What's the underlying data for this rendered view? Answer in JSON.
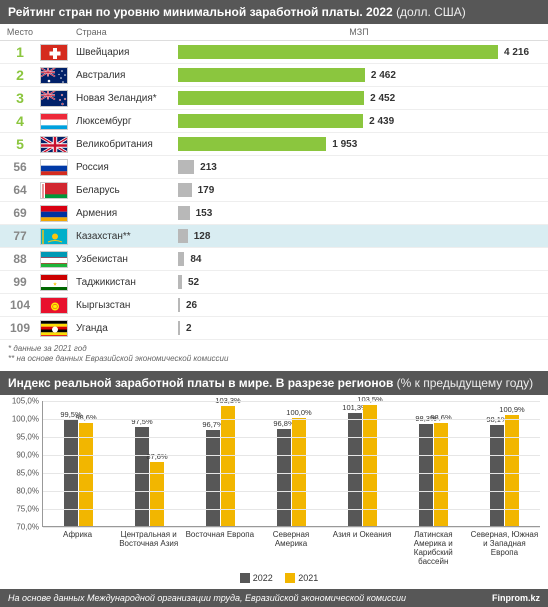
{
  "ranking": {
    "title_main": "Рейтинг стран по уровню минимальной заработной платы. 2022",
    "title_sub": "(долл. США)",
    "bg_color": "#575757",
    "text_color": "#ffffff",
    "headers": {
      "rank": "Место",
      "country": "Страна",
      "value": "МЗП"
    },
    "max_value": 4216,
    "bar_colors": {
      "green": "#8bc63e",
      "gray": "#b8b8b8"
    },
    "rank_colors": {
      "top": "#8bc63e",
      "rest": "#868686"
    },
    "rows": [
      {
        "rank": "1",
        "country": "Швейцария",
        "value": "4 216",
        "num": 4216,
        "top": true,
        "flag": "CH"
      },
      {
        "rank": "2",
        "country": "Австралия",
        "value": "2 462",
        "num": 2462,
        "top": true,
        "flag": "AU"
      },
      {
        "rank": "3",
        "country": "Новая Зеландия*",
        "value": "2 452",
        "num": 2452,
        "top": true,
        "flag": "NZ"
      },
      {
        "rank": "4",
        "country": "Люксембург",
        "value": "2 439",
        "num": 2439,
        "top": true,
        "flag": "LU"
      },
      {
        "rank": "5",
        "country": "Великобритания",
        "value": "1 953",
        "num": 1953,
        "top": true,
        "flag": "GB"
      },
      {
        "rank": "56",
        "country": "Россия",
        "value": "213",
        "num": 213,
        "top": false,
        "flag": "RU"
      },
      {
        "rank": "64",
        "country": "Беларусь",
        "value": "179",
        "num": 179,
        "top": false,
        "flag": "BY"
      },
      {
        "rank": "69",
        "country": "Армения",
        "value": "153",
        "num": 153,
        "top": false,
        "flag": "AM"
      },
      {
        "rank": "77",
        "country": "Казахстан**",
        "value": "128",
        "num": 128,
        "top": false,
        "flag": "KZ",
        "highlight": true
      },
      {
        "rank": "88",
        "country": "Узбекистан",
        "value": "84",
        "num": 84,
        "top": false,
        "flag": "UZ"
      },
      {
        "rank": "99",
        "country": "Таджикистан",
        "value": "52",
        "num": 52,
        "top": false,
        "flag": "TJ"
      },
      {
        "rank": "104",
        "country": "Кыргызстан",
        "value": "26",
        "num": 26,
        "top": false,
        "flag": "KG"
      },
      {
        "rank": "109",
        "country": "Уганда",
        "value": "2",
        "num": 2,
        "top": false,
        "flag": "UG"
      }
    ],
    "footnote1": "* данные за 2021 год",
    "footnote2": "** на основе данных Евразийской экономической комиссии"
  },
  "chart": {
    "title_main": "Индекс реальной заработной платы в мире. В разрезе регионов",
    "title_sub": "(% к предыдущему году)",
    "y_min": 70,
    "y_max": 105,
    "y_ticks": [
      "105,0%",
      "100,0%",
      "95,0%",
      "90,0%",
      "85,0%",
      "80,0%",
      "75,0%",
      "70,0%"
    ],
    "y_vals": [
      105,
      100,
      95,
      90,
      85,
      80,
      75,
      70
    ],
    "color_2022": "#575757",
    "color_2021": "#f2b600",
    "series_labels": {
      "a": "2022",
      "b": "2021"
    },
    "categories": [
      {
        "label": "Африка",
        "a": 99.5,
        "b": 98.6,
        "al": "99,5%",
        "bl": "98,6%"
      },
      {
        "label": "Центральная и Восточная Азия",
        "a": 97.5,
        "b": 87.6,
        "al": "97,5%",
        "bl": "87,6%"
      },
      {
        "label": "Восточная Европа",
        "a": 96.7,
        "b": 103.3,
        "al": "96,7%",
        "bl": "103,3%"
      },
      {
        "label": "Северная Америка",
        "a": 96.8,
        "b": 100.0,
        "al": "96,8%",
        "bl": "100,0%"
      },
      {
        "label": "Азия и Океания",
        "a": 101.3,
        "b": 103.5,
        "al": "101,3%",
        "bl": "103,5%"
      },
      {
        "label": "Латинская Америка и Карибский бассейн",
        "a": 98.3,
        "b": 98.6,
        "al": "98,3%",
        "bl": "98,6%"
      },
      {
        "label": "Северная, Южная и Западная Европа",
        "a": 98.1,
        "b": 100.9,
        "al": "98,1%",
        "bl": "100,9%"
      }
    ]
  },
  "footer": {
    "source": "На основе данных Международной организации труда, Евразийской экономической комиссии",
    "brand": "Finprom.kz"
  },
  "flags": {
    "CH": "<rect width='28' height='17' fill='#d52b1e'/><rect x='12' y='3' width='4' height='11' fill='#fff'/><rect x='8.5' y='6.5' width='11' height='4' fill='#fff'/>",
    "AU": "<rect width='28' height='17' fill='#012169'/><rect width='14' height='8.5' fill='#012169'/><path d='M0,0 L14,8.5 M14,0 L0,8.5' stroke='#fff' stroke-width='1.6'/><path d='M0,0 L14,8.5 M14,0 L0,8.5' stroke='#c8102e' stroke-width='0.8'/><path d='M7,0 V8.5 M0,4.25 H14' stroke='#fff' stroke-width='2'/><path d='M7,0 V8.5 M0,4.25 H14' stroke='#c8102e' stroke-width='1'/><circle cx='8' cy='13' r='1.3' fill='#fff'/><circle cx='21' cy='3' r='0.8' fill='#fff'/><circle cx='24' cy='7' r='0.8' fill='#fff'/><circle cx='20' cy='10' r='0.8' fill='#fff'/><circle cx='22' cy='14' r='0.8' fill='#fff'/><circle cx='18' cy='6.5' r='0.6' fill='#fff'/>",
    "NZ": "<rect width='28' height='17' fill='#012169'/><rect width='14' height='8.5' fill='#012169'/><path d='M0,0 L14,8.5 M14,0 L0,8.5' stroke='#fff' stroke-width='1.6'/><path d='M0,0 L14,8.5 M14,0 L0,8.5' stroke='#c8102e' stroke-width='0.8'/><path d='M7,0 V8.5 M0,4.25 H14' stroke='#fff' stroke-width='2'/><path d='M7,0 V8.5 M0,4.25 H14' stroke='#c8102e' stroke-width='1'/><circle cx='21' cy='4' r='0.9' fill='#c8102e' stroke='#fff' stroke-width='0.4'/><circle cx='24' cy='8' r='0.9' fill='#c8102e' stroke='#fff' stroke-width='0.4'/><circle cx='19' cy='9' r='0.8' fill='#c8102e' stroke='#fff' stroke-width='0.4'/><circle cx='21.5' cy='13' r='1' fill='#c8102e' stroke='#fff' stroke-width='0.4'/>",
    "LU": "<rect width='28' height='5.67' y='0' fill='#ed2939'/><rect width='28' height='5.67' y='5.67' fill='#fff'/><rect width='28' height='5.67' y='11.33' fill='#00a1de'/>",
    "GB": "<rect width='28' height='17' fill='#012169'/><path d='M0,0 L28,17 M28,0 L0,17' stroke='#fff' stroke-width='3'/><path d='M0,0 L28,17 M28,0 L0,17' stroke='#c8102e' stroke-width='1.4'/><path d='M14,0 V17 M0,8.5 H28' stroke='#fff' stroke-width='4.5'/><path d='M14,0 V17 M0,8.5 H28' stroke='#c8102e' stroke-width='2.5'/>",
    "RU": "<rect width='28' height='5.67' y='0' fill='#fff'/><rect width='28' height='5.67' y='5.67' fill='#0039a6'/><rect width='28' height='5.67' y='11.33' fill='#d52b1e'/>",
    "BY": "<rect width='28' height='17' fill='#d22730'/><rect width='28' height='5.67' y='11.33' fill='#009739'/><rect width='4' height='17' fill='#fff'/><rect x='1' y='1' width='2' height='15' fill='#d22730' opacity='0.5'/>",
    "AM": "<rect width='28' height='5.67' y='0' fill='#d90012'/><rect width='28' height='5.67' y='5.67' fill='#0033a0'/><rect width='28' height='5.67' y='11.33' fill='#f2a800'/>",
    "KZ": "<rect width='28' height='17' fill='#00afca'/><circle cx='14' cy='7.5' r='3' fill='#fec50c'/><path d='M7,13 Q14,10 21,13' stroke='#fec50c' stroke-width='1' fill='none'/><rect x='1' y='1' width='2' height='15' fill='#fec50c' opacity='0.7'/>",
    "UZ": "<rect width='28' height='5.67' y='0' fill='#0099b5'/><rect width='28' height='5.67' y='5.67' fill='#fff'/><rect width='28' height='5.67' y='11.33' fill='#1eb53a'/><rect width='28' height='0.6' y='5.3' fill='#ce1126'/><rect width='28' height='0.6' y='11.1' fill='#ce1126'/>",
    "TJ": "<rect width='28' height='5' y='0' fill='#cc0000'/><rect width='28' height='7' y='5' fill='#fff'/><rect width='28' height='5' y='12' fill='#006600'/><path d='M14,7 L14.5,8.5 L16,8.5 L14.7,9.3 L15.2,10.8 L14,9.8 L12.8,10.8 L13.3,9.3 L12,8.5 L13.5,8.5 Z' fill='#f8c300'/>",
    "KG": "<rect width='28' height='17' fill='#e8112d'/><circle cx='14' cy='8.5' r='4' fill='#ffef00'/><circle cx='14' cy='8.5' r='2.5' fill='#e8112d'/><circle cx='14' cy='8.5' r='2' fill='#ffef00'/>",
    "UG": "<rect width='28' height='2.83' y='0' fill='#000'/><rect width='28' height='2.83' y='2.83' fill='#fcdc04'/><rect width='28' height='2.83' y='5.67' fill='#d90000'/><rect width='28' height='2.83' y='8.5' fill='#000'/><rect width='28' height='2.83' y='11.33' fill='#fcdc04'/><rect width='28' height='2.83' y='14.17' fill='#d90000'/><circle cx='14' cy='8.5' r='3' fill='#fff'/>"
  }
}
